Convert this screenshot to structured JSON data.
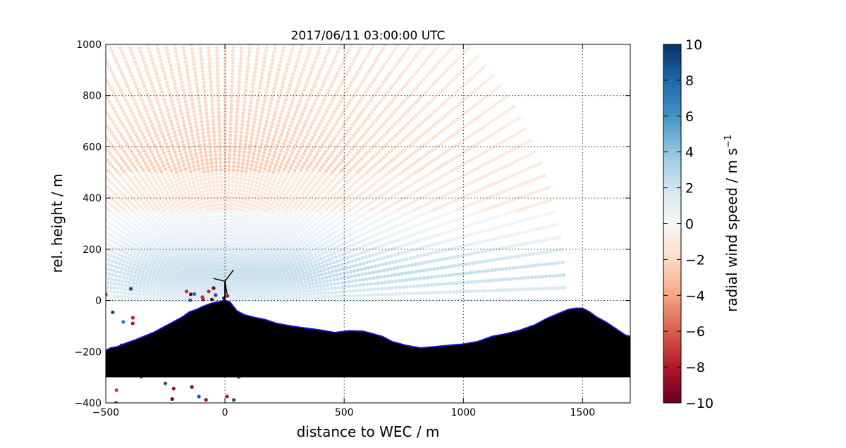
{
  "chart_data": {
    "type": "scatter",
    "title": "2017/06/11 03:00:00 UTC",
    "xlabel": "distance to WEC / m",
    "ylabel": "rel. height / m",
    "xlim": [
      -500,
      1700
    ],
    "ylim": [
      -400,
      1000
    ],
    "xticks": [
      -500,
      0,
      500,
      1000,
      1500
    ],
    "yticks": [
      -400,
      -200,
      0,
      200,
      400,
      600,
      800,
      1000
    ],
    "grid": true,
    "colorbar": {
      "label": "radial wind speed / m s",
      "label_superscript": "−1",
      "range": [
        -10,
        10
      ],
      "ticks": [
        -10,
        -8,
        -6,
        -4,
        -2,
        0,
        2,
        4,
        6,
        8,
        10
      ],
      "colormap": "RdBu",
      "colors": [
        "#67001f",
        "#b2182b",
        "#d6604d",
        "#f4a582",
        "#fddbc7",
        "#f7f7f7",
        "#d1e5f0",
        "#92c5de",
        "#4393c3",
        "#2166ac",
        "#053061"
      ]
    },
    "scan": {
      "origin_x": 0,
      "origin_y": 0,
      "max_range_m": 1430,
      "elevation_min_deg": 0,
      "elevation_max_deg": 180,
      "range_spacing_m": 15,
      "angle_spacing_deg": 2
    },
    "terrain_profile": {
      "x": [
        -500,
        -480,
        -450,
        -420,
        -380,
        -340,
        -300,
        -260,
        -220,
        -180,
        -150,
        -120,
        -90,
        -60,
        -30,
        -10,
        0,
        20,
        50,
        80,
        120,
        170,
        220,
        280,
        340,
        400,
        460,
        520,
        580,
        620,
        660,
        700,
        760,
        820,
        880,
        940,
        1000,
        1060,
        1120,
        1180,
        1240,
        1300,
        1350,
        1400,
        1440,
        1470,
        1500,
        1530,
        1560,
        1600,
        1640,
        1680,
        1700
      ],
      "y": [
        -195,
        -185,
        -180,
        -168,
        -155,
        -140,
        -125,
        -105,
        -85,
        -65,
        -45,
        -35,
        -22,
        -12,
        -5,
        -2,
        0,
        -5,
        -40,
        -55,
        -65,
        -75,
        -90,
        -100,
        -108,
        -115,
        -125,
        -118,
        -120,
        -130,
        -140,
        -160,
        -175,
        -185,
        -180,
        -175,
        -170,
        -160,
        -140,
        -130,
        -115,
        -95,
        -70,
        -50,
        -35,
        -30,
        -30,
        -45,
        -65,
        -85,
        -110,
        -135,
        -140
      ]
    },
    "terrain_base_y": -300,
    "turbine": {
      "x": 0,
      "hub_height_m": 75
    },
    "colors": {
      "terrain": "#000000",
      "terrain_edge": "#1a1adc"
    }
  }
}
